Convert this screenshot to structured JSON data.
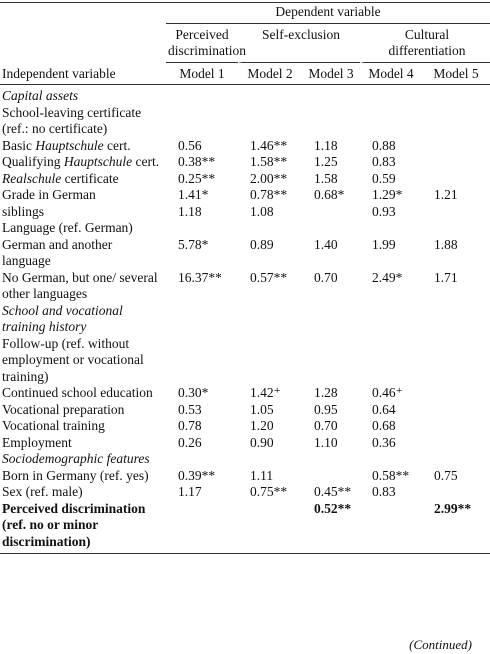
{
  "header": {
    "dependent": "Dependent variable",
    "groups": [
      {
        "text": "Perceived discrimination",
        "span": 1
      },
      {
        "text": "Self-exclusion",
        "span": 2
      },
      {
        "text": "Cultural differentiation",
        "span": 2
      }
    ],
    "row_label": "Independent variable",
    "models": [
      "Model 1",
      "Model 2",
      "Model 3",
      "Model 4",
      "Model 5"
    ]
  },
  "table": {
    "rows": [
      {
        "label": "Capital assets",
        "kind": "section",
        "cells": [
          null,
          null,
          null,
          null,
          null
        ]
      },
      {
        "label": "School-leaving certificate (ref.: no certificate)",
        "cells": [
          null,
          null,
          null,
          null,
          null
        ]
      },
      {
        "label": [
          {
            "text": "Basic "
          },
          {
            "text": "Hauptschule",
            "style": "italic"
          },
          {
            "text": " cert."
          }
        ],
        "cells": [
          "0.56",
          "1.46**",
          "1.18",
          "0.88",
          null
        ]
      },
      {
        "label": [
          {
            "text": "Qualifying "
          },
          {
            "text": "Hauptschule",
            "style": "italic"
          },
          {
            "text": " cert."
          }
        ],
        "cells": [
          "0.38**",
          "1.58**",
          "1.25",
          "0.83",
          null
        ]
      },
      {
        "label": [
          {
            "text": "Realschule",
            "style": "italic"
          },
          {
            "text": " certificate"
          }
        ],
        "cells": [
          "0.25**",
          "2.00**",
          "1.58",
          "0.59",
          null
        ]
      },
      {
        "label": "Grade in German",
        "cells": [
          "1.41*",
          "0.78**",
          "0.68*",
          "1.29*",
          "1.21"
        ]
      },
      {
        "label": "siblings",
        "cells": [
          "1.18",
          "1.08",
          null,
          "0.93",
          null
        ]
      },
      {
        "label": "Language (ref. German)",
        "cells": [
          null,
          null,
          null,
          null,
          null
        ]
      },
      {
        "label": "German and another language",
        "cells": [
          "5.78*",
          "0.89",
          "1.40",
          "1.99",
          "1.88"
        ]
      },
      {
        "label": "No German, but one/ several other languages",
        "cells": [
          "16.37**",
          "0.57**",
          "0.70",
          "2.49*",
          "1.71"
        ]
      },
      {
        "label": "School and vocational training history",
        "kind": "section",
        "cells": [
          null,
          null,
          null,
          null,
          null
        ]
      },
      {
        "label": "Follow-up (ref. without employment or vocational training)",
        "cells": [
          null,
          null,
          null,
          null,
          null
        ]
      },
      {
        "label": "Continued school education",
        "cells": [
          "0.30*",
          "1.42⁺",
          "1.28",
          "0.46⁺",
          null
        ]
      },
      {
        "label": "Vocational preparation",
        "cells": [
          "0.53",
          "1.05",
          "0.95",
          "0.64",
          null
        ]
      },
      {
        "label": "Vocational training",
        "cells": [
          "0.78",
          "1.20",
          "0.70",
          "0.68",
          null
        ]
      },
      {
        "label": "Employment",
        "cells": [
          "0.26",
          "0.90",
          "1.10",
          "0.36",
          null
        ]
      },
      {
        "label": "Sociodemographic features",
        "kind": "section",
        "cells": [
          null,
          null,
          null,
          null,
          null
        ]
      },
      {
        "label": "Born in Germany (ref. yes)",
        "cells": [
          "0.39**",
          "1.11",
          null,
          "0.58**",
          "0.75"
        ]
      },
      {
        "label": "Sex (ref. male)",
        "cells": [
          "1.17",
          "0.75**",
          "0.45**",
          "0.83",
          null
        ]
      },
      {
        "label": "Perceived discrimination (ref. no or minor discrimination)",
        "kind": "bold",
        "cells": [
          null,
          null,
          "0.52**",
          null,
          "2.99**"
        ]
      }
    ]
  },
  "footer": "(Continued)"
}
